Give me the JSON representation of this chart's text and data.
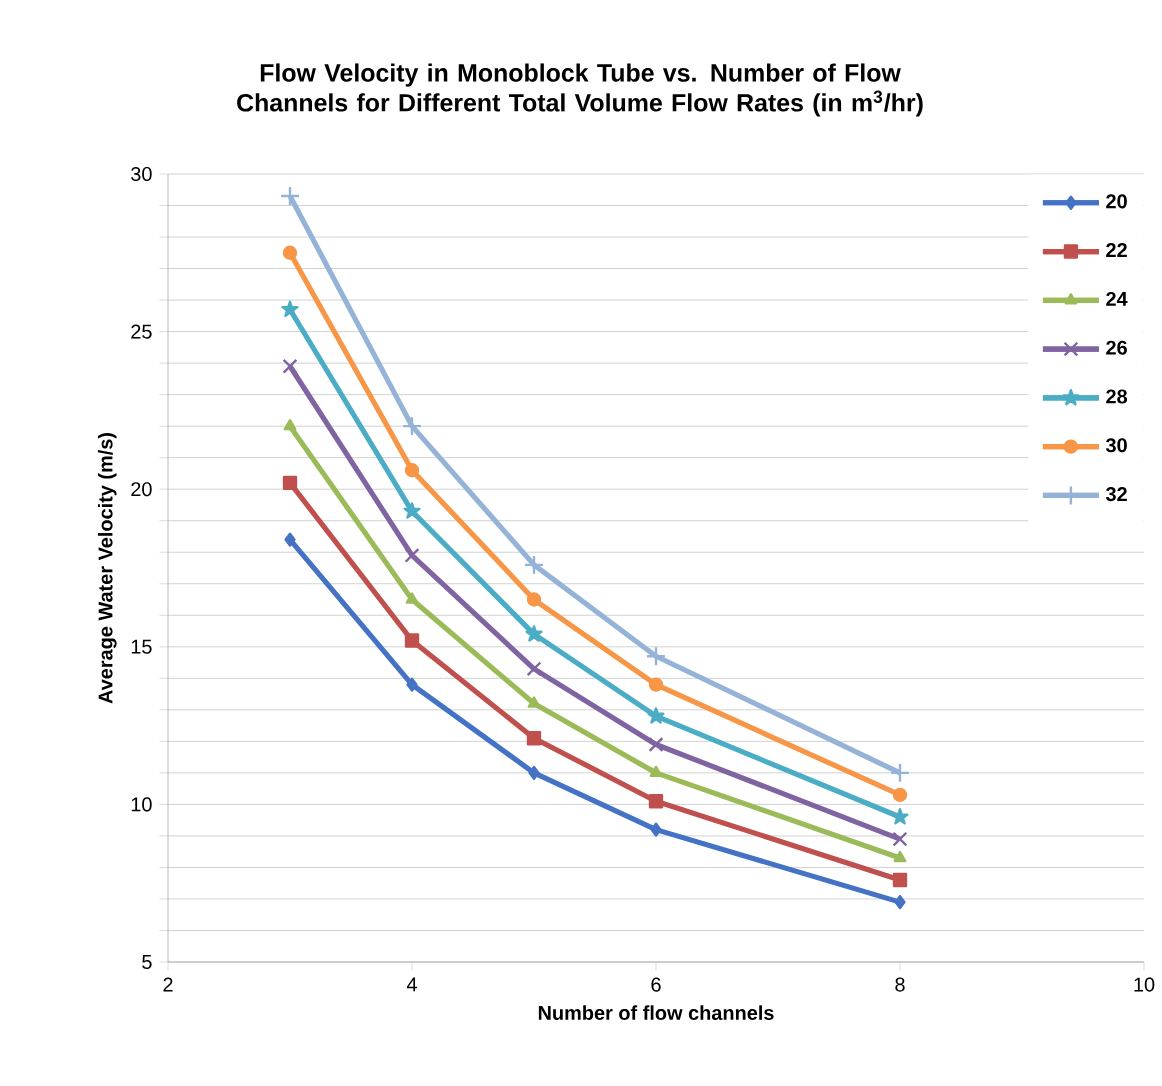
{
  "chart_data": {
    "type": "line",
    "title": "Flow Velocity in Monoblock Tube vs. Number of Flow Channels for Different Total Volume Flow Rates (in m$^{3}$/hr)",
    "xlabel": "Number of flow channels",
    "ylabel": "Average Water Velocity (m/s)",
    "x": [
      3,
      4,
      5,
      6,
      8
    ],
    "series": [
      {
        "name": "20",
        "color": "#4472c4",
        "marker": "diamond",
        "values": [
          18.4,
          13.8,
          11.0,
          9.2,
          6.9
        ]
      },
      {
        "name": "22",
        "color": "#c0504d",
        "marker": "square",
        "values": [
          20.2,
          15.2,
          12.1,
          10.1,
          7.6
        ]
      },
      {
        "name": "24",
        "color": "#9bbb59",
        "marker": "triangle",
        "values": [
          22.0,
          16.5,
          13.2,
          11.0,
          8.3
        ]
      },
      {
        "name": "26",
        "color": "#8064a2",
        "marker": "cross",
        "values": [
          23.9,
          17.9,
          14.3,
          11.9,
          8.9
        ]
      },
      {
        "name": "28",
        "color": "#4bacc6",
        "marker": "star",
        "values": [
          25.7,
          19.3,
          15.4,
          12.8,
          9.6
        ]
      },
      {
        "name": "30",
        "color": "#f79646",
        "marker": "circle",
        "values": [
          27.5,
          20.6,
          16.5,
          13.8,
          10.3
        ]
      },
      {
        "name": "32",
        "color": "#95b3d7",
        "marker": "plus",
        "values": [
          29.3,
          22.0,
          17.6,
          14.7,
          11.0
        ]
      }
    ],
    "xlim": [
      2,
      10
    ],
    "xticks": [
      2,
      4,
      6,
      8,
      10
    ],
    "ylim": [
      5,
      30
    ],
    "yticks": [
      5,
      {
        "value": 6,
        "label": null
      },
      {
        "value": 7,
        "label": null
      },
      {
        "value": 8,
        "label": null
      },
      {
        "value": 9,
        "label": null
      },
      10,
      {
        "value": 11,
        "label": null
      },
      {
        "value": 12,
        "label": null
      },
      {
        "value": 13,
        "label": null
      },
      {
        "value": 14,
        "label": null
      },
      15,
      {
        "value": 16,
        "label": null
      },
      {
        "value": 17,
        "label": null
      },
      {
        "value": 18,
        "label": null
      },
      {
        "value": 19,
        "label": null
      },
      20,
      {
        "value": 21,
        "label": null
      },
      {
        "value": 22,
        "label": null
      },
      {
        "value": 23,
        "label": null
      },
      {
        "value": 24,
        "label": null
      },
      25,
      {
        "value": 26,
        "label": null
      },
      {
        "value": 27,
        "label": null
      },
      {
        "value": 28,
        "label": null
      },
      {
        "value": 29,
        "label": null
      },
      30
    ],
    "grid": "y",
    "legend": "top right",
    "line_style": "solid"
  }
}
